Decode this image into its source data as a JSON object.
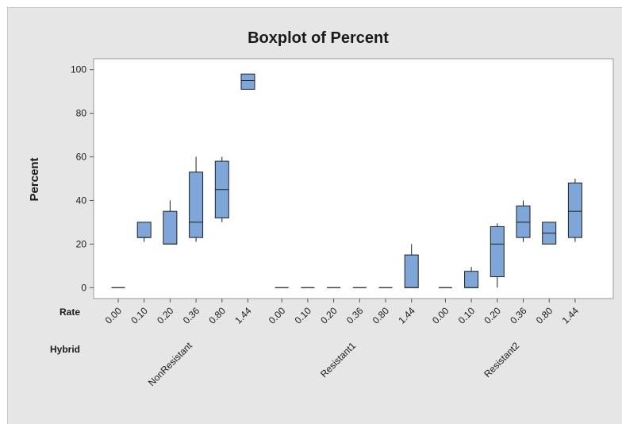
{
  "chart_data": {
    "type": "boxplot",
    "title": "Boxplot of Percent",
    "ylabel": "Percent",
    "ylim": [
      -5,
      105
    ],
    "yticks": [
      0,
      20,
      40,
      60,
      80,
      100
    ],
    "grid": false,
    "factor_labels": {
      "rate": "Rate",
      "hybrid": "Hybrid"
    },
    "box_color": "#7ea6d8",
    "edge_color": "#1f1f1f",
    "groups": [
      {
        "hybrid": "NonResistant",
        "boxes": [
          {
            "rate": "0.00",
            "min": 0,
            "q1": 0,
            "median": 0,
            "q3": 0,
            "max": 0
          },
          {
            "rate": "0.10",
            "min": 21,
            "q1": 23,
            "median": 23,
            "q3": 30,
            "max": 30
          },
          {
            "rate": "0.20",
            "min": 20,
            "q1": 20,
            "median": 20,
            "q3": 35,
            "max": 40
          },
          {
            "rate": "0.36",
            "min": 21,
            "q1": 23,
            "median": 30,
            "q3": 53,
            "max": 60
          },
          {
            "rate": "0.80",
            "min": 30,
            "q1": 32,
            "median": 45,
            "q3": 58,
            "max": 60
          },
          {
            "rate": "1.44",
            "min": 91,
            "q1": 91,
            "median": 95,
            "q3": 98,
            "max": 98
          }
        ]
      },
      {
        "hybrid": "Resistant1",
        "boxes": [
          {
            "rate": "0.00",
            "min": 0,
            "q1": 0,
            "median": 0,
            "q3": 0,
            "max": 0
          },
          {
            "rate": "0.10",
            "min": 0,
            "q1": 0,
            "median": 0,
            "q3": 0,
            "max": 0
          },
          {
            "rate": "0.20",
            "min": 0,
            "q1": 0,
            "median": 0,
            "q3": 0,
            "max": 0
          },
          {
            "rate": "0.36",
            "min": 0,
            "q1": 0,
            "median": 0,
            "q3": 0,
            "max": 0
          },
          {
            "rate": "0.80",
            "min": 0,
            "q1": 0,
            "median": 0,
            "q3": 0,
            "max": 0
          },
          {
            "rate": "1.44",
            "min": 0,
            "q1": 0,
            "median": 0,
            "q3": 15,
            "max": 20
          }
        ]
      },
      {
        "hybrid": "Resistant2",
        "boxes": [
          {
            "rate": "0.00",
            "min": 0,
            "q1": 0,
            "median": 0,
            "q3": 0,
            "max": 0
          },
          {
            "rate": "0.10",
            "min": 0,
            "q1": 0,
            "median": 0,
            "q3": 7.5,
            "max": 9.5
          },
          {
            "rate": "0.20",
            "min": 0,
            "q1": 5,
            "median": 20,
            "q3": 28,
            "max": 29.5
          },
          {
            "rate": "0.36",
            "min": 21,
            "q1": 23,
            "median": 30,
            "q3": 37.5,
            "max": 40
          },
          {
            "rate": "0.80",
            "min": 20,
            "q1": 20,
            "median": 25,
            "q3": 30,
            "max": 30
          },
          {
            "rate": "1.44",
            "min": 21,
            "q1": 23,
            "median": 35,
            "q3": 48,
            "max": 50
          }
        ]
      }
    ]
  }
}
